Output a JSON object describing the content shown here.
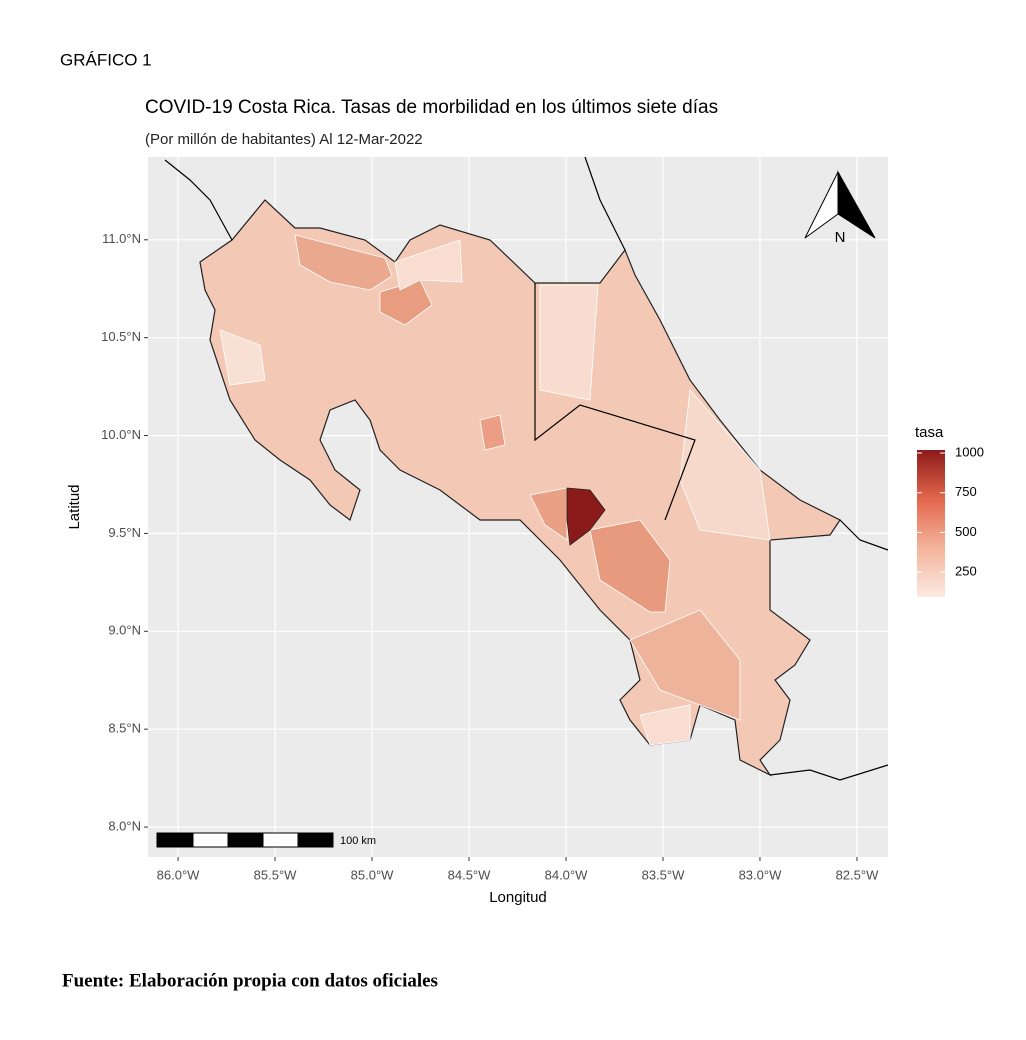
{
  "header": "GRÁFICO 1",
  "map": {
    "title": "COVID-19 Costa Rica. Tasas de morbilidad en los últimos siete días",
    "subtitle": "(Por millón de habitantes) Al 12-Mar-2022",
    "xlabel": "Longitud",
    "ylabel": "Latitud",
    "xlim": [
      -86.155,
      -82.34
    ],
    "ylim": [
      7.847,
      11.423
    ],
    "xticks": [
      {
        "value": -86.0,
        "label": "86.0°W"
      },
      {
        "value": -85.5,
        "label": "85.5°W"
      },
      {
        "value": -85.0,
        "label": "85.0°W"
      },
      {
        "value": -84.5,
        "label": "84.5°W"
      },
      {
        "value": -84.0,
        "label": "84.0°W"
      },
      {
        "value": -83.5,
        "label": "83.5°W"
      },
      {
        "value": -83.0,
        "label": "83.0°W"
      },
      {
        "value": -82.5,
        "label": "82.5°W"
      }
    ],
    "yticks": [
      {
        "value": 8.0,
        "label": "8.0°N"
      },
      {
        "value": 8.5,
        "label": "8.5°N"
      },
      {
        "value": 9.0,
        "label": "9.0°N"
      },
      {
        "value": 9.5,
        "label": "9.5°N"
      },
      {
        "value": 10.0,
        "label": "10.0°N"
      },
      {
        "value": 10.5,
        "label": "10.5°N"
      },
      {
        "value": 11.0,
        "label": "11.0°N"
      }
    ],
    "grid": true,
    "north_label": "N",
    "scale_label": "100 km",
    "legend": {
      "title": "tasa",
      "lim": [
        94,
        1019
      ],
      "ticks": [
        250,
        500,
        750,
        1000
      ],
      "colors": [
        "#fbe9e1",
        "#f4b49c",
        "#e3674c",
        "#8b1a1a"
      ]
    }
  },
  "footer": "Fuente: Elaboración propia con datos oficiales"
}
